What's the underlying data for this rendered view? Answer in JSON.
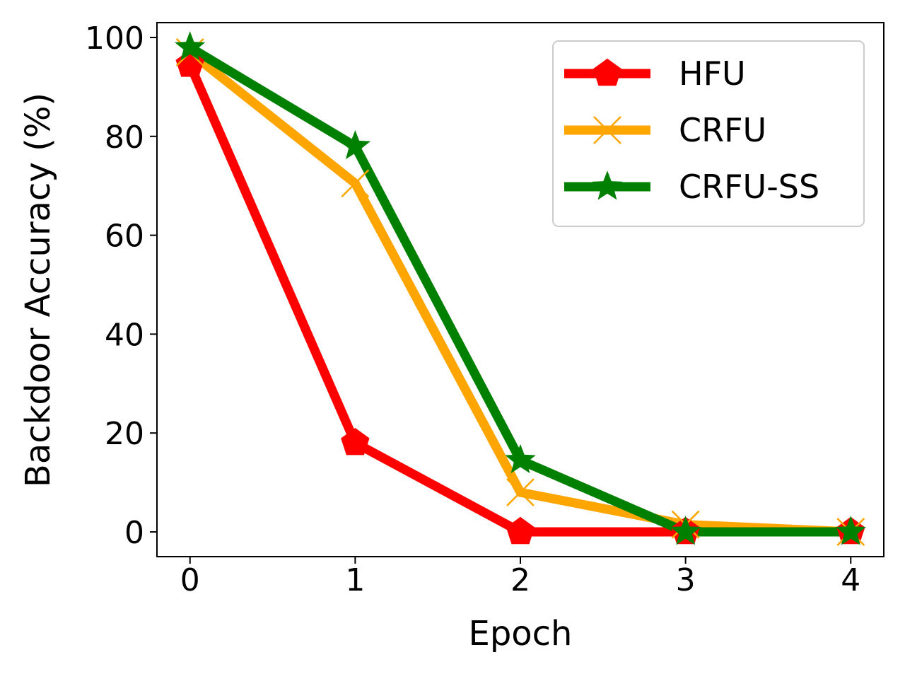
{
  "chart_data": {
    "type": "line",
    "title": "",
    "xlabel": "Epoch",
    "ylabel": "Backdoor Accuracy (%)",
    "xlim": [
      -0.2,
      4.2
    ],
    "ylim": [
      -5,
      103
    ],
    "xticks": [
      "0",
      "1",
      "2",
      "3",
      "4"
    ],
    "yticks": [
      "0",
      "20",
      "40",
      "60",
      "80",
      "100"
    ],
    "grid": false,
    "legend_position": "top-right",
    "x": [
      0,
      1,
      2,
      3,
      4
    ],
    "series": [
      {
        "name": "HFU",
        "values": [
          94.5,
          18,
          0,
          0,
          0
        ],
        "color": "#ff0000",
        "marker": "pentagon"
      },
      {
        "name": "CRFU",
        "values": [
          97,
          70.5,
          8,
          1.5,
          0
        ],
        "color": "#ffa500",
        "marker": "x"
      },
      {
        "name": "CRFU-SS",
        "values": [
          98,
          78,
          14.5,
          0,
          0
        ],
        "color": "#008000",
        "marker": "star"
      }
    ]
  }
}
